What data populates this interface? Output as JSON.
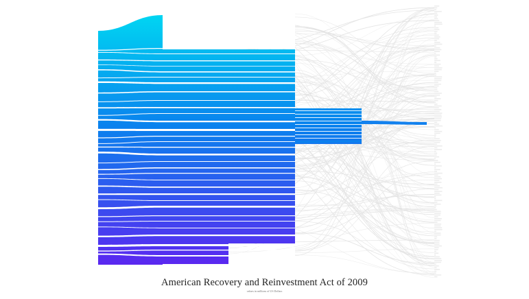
{
  "title": "American Recovery and Reinvestment Act of 2009",
  "subtitle": "values in millions of US Dollars",
  "colors": {
    "top": "#00d6f2",
    "middle": "#0a82ee",
    "bottom": "#5a28f0",
    "faint_link": "#e4e4e4",
    "highlight": "#1281ee"
  },
  "diagram": {
    "type": "sankey",
    "levels": 5
  }
}
